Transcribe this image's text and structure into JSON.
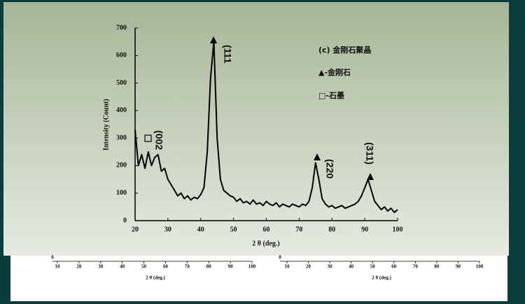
{
  "chart_data": {
    "type": "line",
    "ylabel": "Intensity (Count)",
    "xlabel": "2 θ (deg.)",
    "x": [
      20,
      21,
      22,
      23,
      24,
      25,
      26,
      27,
      28,
      29,
      30,
      31,
      32,
      33,
      34,
      35,
      36,
      37,
      38,
      39,
      40,
      41,
      42,
      43,
      44,
      45,
      46,
      47,
      48,
      49,
      50,
      51,
      52,
      53,
      54,
      55,
      56,
      57,
      58,
      59,
      60,
      61,
      62,
      63,
      64,
      65,
      66,
      67,
      68,
      69,
      70,
      71,
      72,
      73,
      74,
      75,
      76,
      77,
      78,
      79,
      80,
      81,
      82,
      83,
      84,
      85,
      86,
      87,
      88,
      89,
      90,
      91,
      92,
      93,
      94,
      95,
      96,
      97,
      98,
      99,
      100
    ],
    "values": [
      330,
      200,
      240,
      190,
      250,
      200,
      230,
      240,
      180,
      190,
      150,
      130,
      110,
      90,
      100,
      80,
      90,
      75,
      85,
      80,
      95,
      120,
      250,
      520,
      650,
      300,
      150,
      110,
      100,
      90,
      85,
      70,
      80,
      65,
      70,
      60,
      75,
      60,
      65,
      55,
      70,
      60,
      55,
      65,
      50,
      60,
      55,
      50,
      60,
      55,
      50,
      60,
      55,
      70,
      120,
      210,
      150,
      80,
      60,
      50,
      55,
      45,
      50,
      55,
      45,
      50,
      55,
      60,
      70,
      90,
      120,
      150,
      110,
      70,
      55,
      40,
      50,
      35,
      45,
      30,
      40
    ],
    "color": "#000000",
    "xlim": [
      20,
      100
    ],
    "xticks": [
      20,
      30,
      40,
      50,
      60,
      70,
      80,
      90,
      100
    ],
    "ylim": [
      0,
      700
    ],
    "yticks": [
      0,
      100,
      200,
      300,
      400,
      500,
      600,
      700
    ],
    "annotations": [
      "(111",
      "(002",
      "(220",
      "(311)"
    ],
    "legend_notes": [
      "(c) 金刚石聚晶",
      "▲-金刚石",
      "□-石墨"
    ]
  },
  "lower_axes": [
    {
      "yticks": [
        0
      ],
      "xticks": [
        10,
        20,
        30,
        40,
        50,
        60,
        70,
        80,
        90,
        100
      ],
      "xlabel": "2 θ (deg.)"
    },
    {
      "yticks": [
        0
      ],
      "xticks": [
        10,
        20,
        30,
        40,
        50,
        60,
        70,
        80,
        90,
        100
      ],
      "xlabel": "2 θ (deg.)"
    }
  ]
}
